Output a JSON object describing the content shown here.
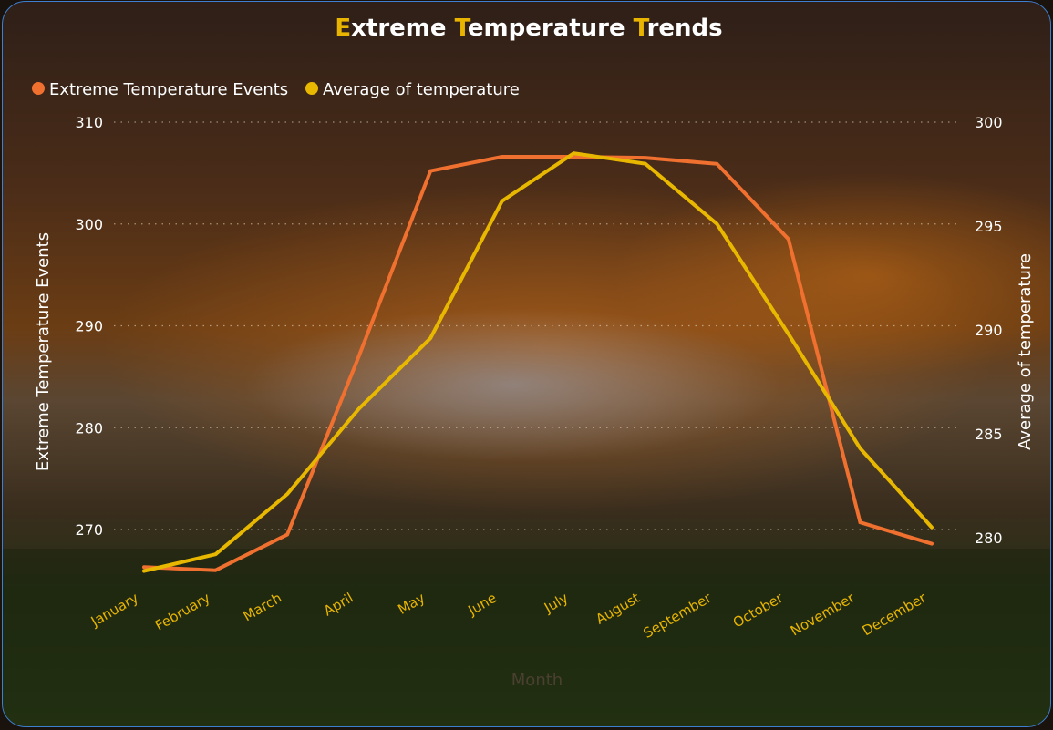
{
  "chart_data": {
    "type": "line",
    "title": "Extreme Temperature Trends",
    "categories": [
      "January",
      "February",
      "March",
      "April",
      "May",
      "June",
      "July",
      "August",
      "September",
      "October",
      "November",
      "December"
    ],
    "xlabel": "Month",
    "ylabel_left": "Extreme Temperature Events",
    "ylabel_right": "Average of temperature",
    "ylim_left": [
      268,
      310
    ],
    "ylim_right": [
      279,
      300
    ],
    "yticks_left": [
      "270",
      "280",
      "290",
      "300",
      "310"
    ],
    "yticks_right": [
      "280",
      "285",
      "290",
      "295",
      "300"
    ],
    "grid": true,
    "legend_position": "top-left",
    "series": [
      {
        "name": "Extreme Temperature Events",
        "axis": "left",
        "color": "#f07030",
        "values": [
          266.3,
          266.0,
          269.5,
          287.0,
          305.2,
          306.6,
          306.6,
          306.5,
          305.9,
          298.5,
          270.7,
          268.6
        ]
      },
      {
        "name": "Average of temperature",
        "axis": "right",
        "color": "#e8b800",
        "values": [
          278.4,
          279.2,
          282.1,
          286.2,
          289.6,
          296.2,
          298.5,
          298.0,
          295.1,
          289.8,
          284.3,
          280.5
        ]
      }
    ]
  }
}
